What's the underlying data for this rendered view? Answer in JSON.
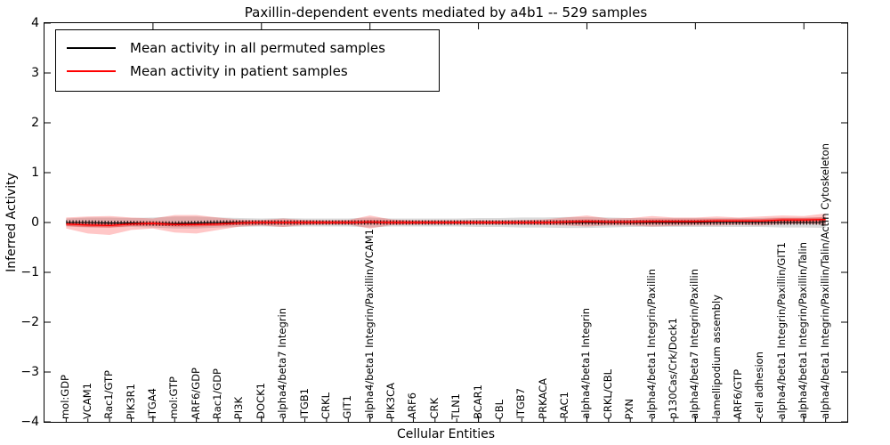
{
  "title": "Paxillin-dependent events mediated by a4b1 -- 529 samples",
  "axes": {
    "x_label": "Cellular Entities",
    "y_label": "Inferred Activity",
    "y_tick_values": [
      4,
      3,
      2,
      1,
      0,
      -1,
      -2,
      -3,
      -4
    ],
    "y_tick_labels": [
      "4",
      "3",
      "2",
      "1",
      "0",
      "−1",
      "−2",
      "−3",
      "−4"
    ]
  },
  "legend": {
    "entries": [
      {
        "label": "Mean activity in all permuted samples",
        "color": "#000000"
      },
      {
        "label": "Mean activity in patient samples",
        "color": "#ff0000"
      }
    ]
  },
  "chart_data": {
    "type": "line",
    "title": "Paxillin-dependent events mediated by a4b1 -- 529 samples",
    "xlabel": "Cellular Entities",
    "ylabel": "Inferred Activity",
    "ylim": [
      -4,
      4
    ],
    "xlim": [
      0,
      37
    ],
    "x_major_ticks": [
      5,
      10,
      15,
      20,
      25,
      30,
      35
    ],
    "legend_position": "upper left",
    "grid": false,
    "categories": [
      "mol:GDP",
      "VCAM1",
      "Rac1/GTP",
      "PIK3R1",
      "ITGA4",
      "mol:GTP",
      "ARF6/GDP",
      "Rac1/GDP",
      "PI3K",
      "DOCK1",
      "alpha4/beta7 Integrin",
      "ITGB1",
      "CRKL",
      "GIT1",
      "alpha4/beta1 Integrin/Paxillin/VCAM1",
      "PIK3CA",
      "ARF6",
      "CRK",
      "TLN1",
      "BCAR1",
      "CBL",
      "ITGB7",
      "PRKACA",
      "RAC1",
      "alpha4/beta1 Integrin",
      "CRKL/CBL",
      "PXN",
      "alpha4/beta1 Integrin/Paxillin",
      "p130Cas/Crk/Dock1",
      "alpha4/beta7 Integrin/Paxillin",
      "lamellipodium assembly",
      "ARF6/GTP",
      "cell adhesion",
      "alpha4/beta1 Integrin/Paxillin/GIT1",
      "alpha4/beta1 Integrin/Paxillin/Talin",
      "alpha4/beta1 Integrin/Paxillin/Talin/Actin Cytoskeleton"
    ],
    "series": [
      {
        "name": "Mean activity in all permuted samples",
        "color": "#000000",
        "values": [
          0,
          0,
          -0.01,
          -0.01,
          -0.02,
          -0.02,
          -0.01,
          0,
          0,
          0,
          0,
          0,
          0,
          0,
          0,
          0,
          0,
          0,
          0,
          0,
          0,
          0,
          0,
          0,
          0,
          0,
          0,
          0,
          0,
          0,
          0,
          0,
          0,
          0,
          0,
          0
        ]
      },
      {
        "name": "Mean activity in patient samples",
        "color": "#ff0000",
        "values": [
          -0.03,
          -0.05,
          -0.06,
          -0.03,
          -0.02,
          -0.04,
          -0.04,
          -0.03,
          -0.01,
          0,
          0,
          0,
          0,
          0,
          0.01,
          0,
          0,
          0,
          0,
          0,
          0,
          0,
          0,
          0.01,
          0.02,
          0.01,
          0.01,
          0.02,
          0.02,
          0.02,
          0.03,
          0.03,
          0.03,
          0.05,
          0.05,
          0.06
        ]
      }
    ],
    "bands": [
      {
        "name": "permuted-samples-range",
        "color": "#999999",
        "opacity": 0.35,
        "low": [
          -0.08,
          -0.1,
          -0.1,
          -0.09,
          -0.1,
          -0.12,
          -0.12,
          -0.1,
          -0.09,
          -0.08,
          -0.09,
          -0.08,
          -0.08,
          -0.08,
          -0.1,
          -0.08,
          -0.08,
          -0.08,
          -0.08,
          -0.09,
          -0.09,
          -0.1,
          -0.1,
          -0.11,
          -0.11,
          -0.1,
          -0.09,
          -0.09,
          -0.09,
          -0.09,
          -0.09,
          -0.09,
          -0.09,
          -0.1,
          -0.1,
          -0.11
        ],
        "high": [
          0.08,
          0.1,
          0.1,
          0.09,
          0.1,
          0.12,
          0.12,
          0.1,
          0.09,
          0.08,
          0.09,
          0.08,
          0.08,
          0.08,
          0.1,
          0.08,
          0.08,
          0.08,
          0.08,
          0.09,
          0.09,
          0.1,
          0.1,
          0.11,
          0.11,
          0.1,
          0.09,
          0.09,
          0.09,
          0.09,
          0.09,
          0.09,
          0.09,
          0.1,
          0.1,
          0.11
        ]
      },
      {
        "name": "patient-samples-range",
        "color": "#ff0000",
        "opacity": 0.22,
        "low": [
          -0.12,
          -0.22,
          -0.25,
          -0.15,
          -0.12,
          -0.2,
          -0.22,
          -0.15,
          -0.08,
          -0.06,
          -0.09,
          -0.05,
          -0.04,
          -0.04,
          -0.12,
          -0.05,
          -0.04,
          -0.03,
          -0.03,
          -0.03,
          -0.04,
          -0.04,
          -0.05,
          -0.06,
          -0.08,
          -0.06,
          -0.06,
          -0.08,
          -0.07,
          -0.06,
          -0.06,
          -0.05,
          -0.06,
          -0.04,
          -0.03,
          -0.05
        ],
        "high": [
          0.1,
          0.12,
          0.13,
          0.1,
          0.08,
          0.15,
          0.15,
          0.1,
          0.06,
          0.05,
          0.08,
          0.05,
          0.04,
          0.05,
          0.14,
          0.06,
          0.04,
          0.04,
          0.04,
          0.04,
          0.04,
          0.05,
          0.06,
          0.1,
          0.14,
          0.08,
          0.09,
          0.13,
          0.1,
          0.1,
          0.12,
          0.1,
          0.12,
          0.14,
          0.13,
          0.18
        ]
      },
      {
        "name": "patient-samples-core",
        "color": "#ff0000",
        "opacity": 0.38,
        "low": [
          -0.07,
          -0.09,
          -0.1,
          -0.07,
          -0.06,
          -0.08,
          -0.08,
          -0.07,
          -0.05,
          -0.04,
          -0.04,
          -0.04,
          -0.04,
          -0.04,
          -0.03,
          -0.04,
          -0.04,
          -0.04,
          -0.04,
          -0.04,
          -0.04,
          -0.04,
          -0.04,
          -0.03,
          -0.02,
          -0.03,
          -0.03,
          -0.02,
          -0.02,
          -0.02,
          -0.01,
          -0.01,
          -0.01,
          0.01,
          0.01,
          0.02
        ],
        "high": [
          0.01,
          -0.01,
          -0.02,
          0.01,
          0.02,
          0.0,
          0.0,
          0.01,
          0.03,
          0.04,
          0.04,
          0.04,
          0.04,
          0.04,
          0.05,
          0.04,
          0.04,
          0.04,
          0.04,
          0.04,
          0.04,
          0.04,
          0.04,
          0.05,
          0.06,
          0.05,
          0.05,
          0.06,
          0.06,
          0.06,
          0.07,
          0.07,
          0.07,
          0.09,
          0.09,
          0.1
        ]
      }
    ]
  }
}
